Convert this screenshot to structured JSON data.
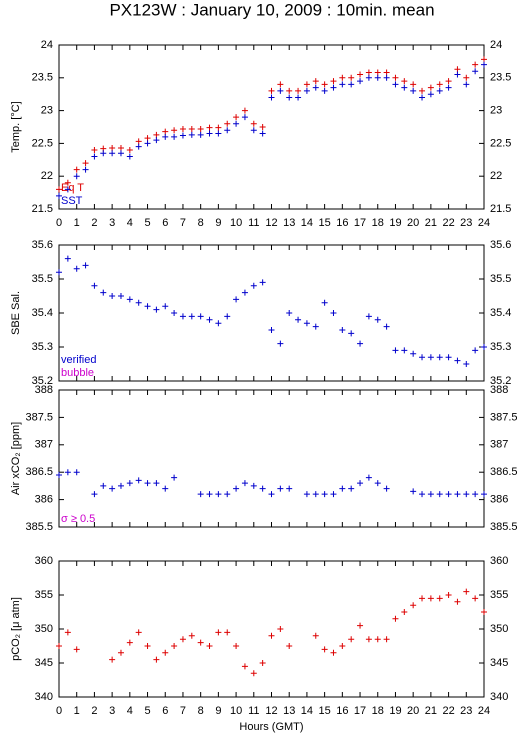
{
  "title": "PX123W : January 10, 2009 : 10min. mean",
  "chart_data": [
    {
      "type": "scatter",
      "ylabel": "Temp. [°C]",
      "show_xtick_labels": true,
      "x": [
        0,
        0.5,
        1,
        1.5,
        2,
        2.5,
        3,
        3.5,
        4,
        4.5,
        5,
        5.5,
        6,
        6.5,
        7,
        7.5,
        8,
        8.5,
        9,
        9.5,
        10,
        10.5,
        11,
        11.5,
        12,
        12.5,
        13,
        13.5,
        14,
        14.5,
        15,
        15.5,
        16,
        16.5,
        17,
        17.5,
        18,
        18.5,
        19,
        19.5,
        20,
        20.5,
        21,
        21.5,
        22,
        22.5,
        23,
        23.5,
        24
      ],
      "series": [
        {
          "name": "Eq T",
          "color": "#dd0000",
          "values": [
            21.8,
            21.9,
            22.1,
            22.2,
            22.4,
            22.42,
            22.43,
            22.43,
            22.4,
            22.53,
            22.58,
            22.63,
            22.68,
            22.7,
            22.72,
            22.72,
            22.72,
            22.74,
            22.74,
            22.8,
            22.9,
            23.0,
            22.8,
            22.75,
            23.3,
            23.4,
            23.3,
            23.3,
            23.4,
            23.45,
            23.4,
            23.45,
            23.5,
            23.5,
            23.55,
            23.58,
            23.58,
            23.58,
            23.5,
            23.45,
            23.4,
            23.3,
            23.35,
            23.4,
            23.45,
            23.63,
            23.5,
            23.7,
            23.78
          ]
        },
        {
          "name": "SST",
          "color": "#0000cc",
          "values": [
            21.7,
            21.8,
            22.0,
            22.1,
            22.3,
            22.35,
            22.35,
            22.35,
            22.3,
            22.45,
            22.5,
            22.55,
            22.6,
            22.6,
            22.62,
            22.63,
            22.63,
            22.65,
            22.65,
            22.7,
            22.8,
            22.9,
            22.7,
            22.65,
            23.2,
            23.3,
            23.2,
            23.2,
            23.3,
            23.35,
            23.3,
            23.35,
            23.4,
            23.4,
            23.45,
            23.5,
            23.5,
            23.5,
            23.4,
            23.35,
            23.3,
            23.2,
            23.25,
            23.3,
            23.35,
            23.55,
            23.4,
            23.6,
            23.7
          ]
        }
      ],
      "xlim": [
        0,
        24
      ],
      "xticks": [
        0,
        1,
        2,
        3,
        4,
        5,
        6,
        7,
        8,
        9,
        10,
        11,
        12,
        13,
        14,
        15,
        16,
        17,
        18,
        19,
        20,
        21,
        22,
        23,
        24
      ],
      "ylim": [
        21.5,
        24
      ],
      "yticks": [
        21.5,
        22,
        22.5,
        23,
        23.5,
        24
      ]
    },
    {
      "type": "scatter",
      "ylabel": "SBE Sal.",
      "show_xtick_labels": false,
      "x": [
        0,
        0.5,
        1,
        1.5,
        2,
        2.5,
        3,
        3.5,
        4,
        4.5,
        5,
        5.5,
        6,
        6.5,
        7,
        7.5,
        8,
        8.5,
        9,
        9.5,
        10,
        10.5,
        11,
        11.5,
        12,
        12.5,
        13,
        13.5,
        14,
        14.5,
        15,
        15.5,
        16,
        16.5,
        17,
        17.5,
        18,
        18.5,
        19,
        19.5,
        20,
        20.5,
        21,
        21.5,
        22,
        22.5,
        23,
        23.5,
        24
      ],
      "series": [
        {
          "name": "verified",
          "color": "#0000cc",
          "values": [
            35.52,
            35.56,
            35.53,
            35.54,
            35.48,
            35.46,
            35.45,
            35.45,
            35.44,
            35.43,
            35.42,
            35.41,
            35.42,
            35.4,
            35.39,
            35.39,
            35.39,
            35.38,
            35.37,
            35.39,
            35.44,
            35.46,
            35.48,
            35.49,
            35.35,
            35.31,
            35.4,
            35.38,
            35.37,
            35.36,
            35.43,
            35.4,
            35.35,
            35.34,
            35.31,
            35.39,
            35.38,
            35.36,
            35.29,
            35.29,
            35.28,
            35.27,
            35.27,
            35.27,
            35.27,
            35.26,
            35.25,
            35.29,
            35.3
          ]
        }
      ],
      "annotations": [
        {
          "text": "bubble",
          "color": "#cc00cc"
        }
      ],
      "xlim": [
        0,
        24
      ],
      "xticks": [
        0,
        1,
        2,
        3,
        4,
        5,
        6,
        7,
        8,
        9,
        10,
        11,
        12,
        13,
        14,
        15,
        16,
        17,
        18,
        19,
        20,
        21,
        22,
        23,
        24
      ],
      "ylim": [
        35.2,
        35.6
      ],
      "yticks": [
        35.2,
        35.3,
        35.4,
        35.5,
        35.6
      ]
    },
    {
      "type": "scatter",
      "ylabel": "Air xCO₂ [ppm]",
      "show_xtick_labels": false,
      "x": [
        0,
        0.5,
        1,
        1.5,
        2,
        2.5,
        3,
        3.5,
        4,
        4.5,
        5,
        5.5,
        6,
        6.5,
        7,
        7.5,
        8,
        8.5,
        9,
        9.5,
        10,
        10.5,
        11,
        11.5,
        12,
        12.5,
        13,
        13.5,
        14,
        14.5,
        15,
        15.5,
        16,
        16.5,
        17,
        17.5,
        18,
        18.5,
        19,
        19.5,
        20,
        20.5,
        21,
        21.5,
        22,
        22.5,
        23,
        23.5,
        24
      ],
      "series": [
        {
          "name": null,
          "color": "#0000cc",
          "values": [
            386.45,
            386.5,
            386.5,
            null,
            386.1,
            386.25,
            386.2,
            386.25,
            386.3,
            386.35,
            386.3,
            386.3,
            386.2,
            386.4,
            null,
            null,
            386.1,
            386.1,
            386.1,
            386.1,
            386.2,
            386.3,
            386.25,
            386.2,
            386.1,
            386.2,
            386.2,
            null,
            386.1,
            386.1,
            386.1,
            386.1,
            386.2,
            386.2,
            386.3,
            386.4,
            386.3,
            386.2,
            null,
            null,
            386.15,
            386.1,
            386.1,
            386.1,
            386.1,
            386.1,
            386.1,
            386.1,
            386.1
          ]
        }
      ],
      "annotations": [
        {
          "text": "σ ≥ 0.5",
          "color": "#cc00cc"
        }
      ],
      "xlim": [
        0,
        24
      ],
      "xticks": [
        0,
        1,
        2,
        3,
        4,
        5,
        6,
        7,
        8,
        9,
        10,
        11,
        12,
        13,
        14,
        15,
        16,
        17,
        18,
        19,
        20,
        21,
        22,
        23,
        24
      ],
      "ylim": [
        385.5,
        388
      ],
      "yticks": [
        385.5,
        386,
        386.5,
        387,
        387.5,
        388
      ]
    },
    {
      "type": "scatter",
      "ylabel": "pCO₂ [μ atm]",
      "xlabel": "Hours (GMT)",
      "show_xtick_labels": true,
      "x": [
        0,
        0.5,
        1,
        1.5,
        2,
        2.5,
        3,
        3.5,
        4,
        4.5,
        5,
        5.5,
        6,
        6.5,
        7,
        7.5,
        8,
        8.5,
        9,
        9.5,
        10,
        10.5,
        11,
        11.5,
        12,
        12.5,
        13,
        13.5,
        14,
        14.5,
        15,
        15.5,
        16,
        16.5,
        17,
        17.5,
        18,
        18.5,
        19,
        19.5,
        20,
        20.5,
        21,
        21.5,
        22,
        22.5,
        23,
        23.5,
        24
      ],
      "series": [
        {
          "name": null,
          "color": "#dd0000",
          "values": [
            347.5,
            349.5,
            347,
            null,
            null,
            null,
            345.5,
            346.5,
            348,
            349.5,
            347.5,
            345.5,
            346.5,
            347.5,
            348.5,
            349,
            348,
            347.5,
            349.5,
            349.5,
            347.5,
            344.5,
            343.5,
            345,
            349,
            350,
            347.5,
            null,
            null,
            349,
            347,
            346.5,
            347.5,
            348.5,
            350.5,
            348.5,
            348.5,
            348.5,
            351.5,
            352.5,
            353.5,
            354.5,
            354.5,
            354.5,
            355,
            354,
            355.5,
            354.5,
            352.5
          ]
        }
      ],
      "xlim": [
        0,
        24
      ],
      "xticks": [
        0,
        1,
        2,
        3,
        4,
        5,
        6,
        7,
        8,
        9,
        10,
        11,
        12,
        13,
        14,
        15,
        16,
        17,
        18,
        19,
        20,
        21,
        22,
        23,
        24
      ],
      "ylim": [
        340,
        360
      ],
      "yticks": [
        340,
        345,
        350,
        355,
        360
      ]
    }
  ]
}
